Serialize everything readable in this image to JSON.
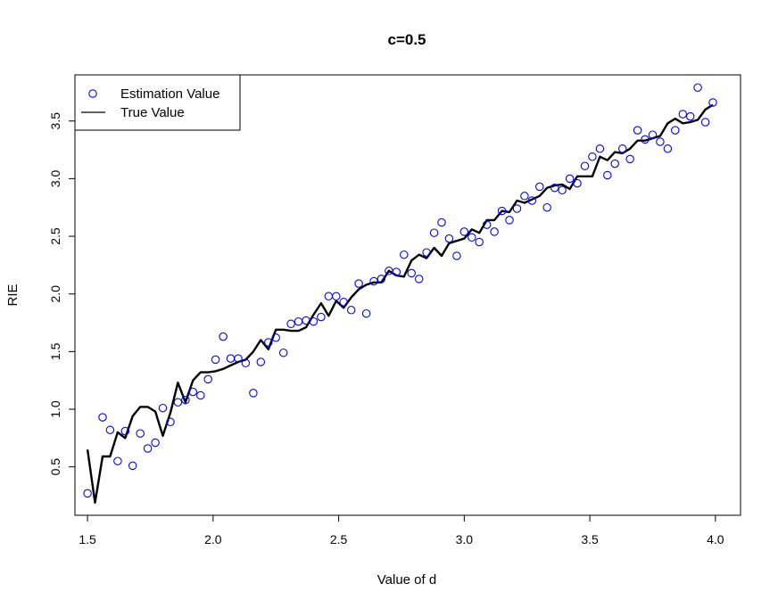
{
  "chart_data": {
    "type": "scatter",
    "title": "c=0.5",
    "xlabel": "Value of d",
    "ylabel": "RIE",
    "xlim": [
      1.45,
      4.1
    ],
    "ylim": [
      0.08,
      3.9
    ],
    "x_ticks": [
      "1.5",
      "2.0",
      "2.5",
      "3.0",
      "3.5",
      "4.0"
    ],
    "y_ticks": [
      "0.5",
      "1.0",
      "1.5",
      "2.0",
      "2.5",
      "3.0",
      "3.5"
    ],
    "legend": {
      "position": "top-left",
      "entries": [
        {
          "label": "Estimation Value",
          "marker": "open-circle",
          "color": "#0000ff"
        },
        {
          "label": "True Value",
          "marker": "line",
          "color": "#000000"
        }
      ]
    },
    "series": [
      {
        "name": "Estimation Value",
        "kind": "points",
        "color": "#0000ff",
        "points": [
          [
            1.5,
            0.27
          ],
          [
            1.56,
            0.93
          ],
          [
            1.59,
            0.82
          ],
          [
            1.62,
            0.55
          ],
          [
            1.65,
            0.81
          ],
          [
            1.68,
            0.51
          ],
          [
            1.71,
            0.79
          ],
          [
            1.74,
            0.66
          ],
          [
            1.77,
            0.71
          ],
          [
            1.8,
            1.01
          ],
          [
            1.83,
            0.89
          ],
          [
            1.86,
            1.06
          ],
          [
            1.89,
            1.08
          ],
          [
            1.92,
            1.15
          ],
          [
            1.95,
            1.12
          ],
          [
            1.98,
            1.26
          ],
          [
            2.01,
            1.43
          ],
          [
            2.04,
            1.63
          ],
          [
            2.07,
            1.44
          ],
          [
            2.1,
            1.44
          ],
          [
            2.13,
            1.4
          ],
          [
            2.16,
            1.14
          ],
          [
            2.19,
            1.41
          ],
          [
            2.22,
            1.58
          ],
          [
            2.25,
            1.62
          ],
          [
            2.28,
            1.49
          ],
          [
            2.31,
            1.74
          ],
          [
            2.34,
            1.76
          ],
          [
            2.37,
            1.77
          ],
          [
            2.4,
            1.76
          ],
          [
            2.43,
            1.8
          ],
          [
            2.46,
            1.98
          ],
          [
            2.49,
            1.98
          ],
          [
            2.52,
            1.93
          ],
          [
            2.55,
            1.86
          ],
          [
            2.58,
            2.09
          ],
          [
            2.61,
            1.83
          ],
          [
            2.64,
            2.11
          ],
          [
            2.67,
            2.13
          ],
          [
            2.7,
            2.2
          ],
          [
            2.73,
            2.19
          ],
          [
            2.76,
            2.34
          ],
          [
            2.79,
            2.18
          ],
          [
            2.82,
            2.13
          ],
          [
            2.85,
            2.36
          ],
          [
            2.88,
            2.53
          ],
          [
            2.91,
            2.62
          ],
          [
            2.94,
            2.48
          ],
          [
            2.97,
            2.33
          ],
          [
            3.0,
            2.54
          ],
          [
            3.03,
            2.49
          ],
          [
            3.06,
            2.45
          ],
          [
            3.09,
            2.6
          ],
          [
            3.12,
            2.54
          ],
          [
            3.15,
            2.72
          ],
          [
            3.18,
            2.64
          ],
          [
            3.21,
            2.74
          ],
          [
            3.24,
            2.85
          ],
          [
            3.27,
            2.81
          ],
          [
            3.3,
            2.93
          ],
          [
            3.33,
            2.75
          ],
          [
            3.36,
            2.92
          ],
          [
            3.39,
            2.9
          ],
          [
            3.42,
            3.0
          ],
          [
            3.45,
            2.96
          ],
          [
            3.48,
            3.11
          ],
          [
            3.51,
            3.19
          ],
          [
            3.54,
            3.26
          ],
          [
            3.57,
            3.03
          ],
          [
            3.6,
            3.13
          ],
          [
            3.63,
            3.26
          ],
          [
            3.66,
            3.17
          ],
          [
            3.69,
            3.42
          ],
          [
            3.72,
            3.34
          ],
          [
            3.75,
            3.38
          ],
          [
            3.78,
            3.32
          ],
          [
            3.81,
            3.26
          ],
          [
            3.84,
            3.42
          ],
          [
            3.87,
            3.56
          ],
          [
            3.9,
            3.54
          ],
          [
            3.93,
            3.79
          ],
          [
            3.96,
            3.49
          ],
          [
            3.99,
            3.66
          ]
        ]
      },
      {
        "name": "True Value",
        "kind": "line",
        "color": "#000000",
        "points": [
          [
            1.5,
            0.65
          ],
          [
            1.53,
            0.19
          ],
          [
            1.56,
            0.59
          ],
          [
            1.59,
            0.59
          ],
          [
            1.62,
            0.8
          ],
          [
            1.65,
            0.75
          ],
          [
            1.68,
            0.94
          ],
          [
            1.71,
            1.02
          ],
          [
            1.74,
            1.02
          ],
          [
            1.77,
            0.98
          ],
          [
            1.8,
            0.77
          ],
          [
            1.83,
            0.97
          ],
          [
            1.86,
            1.23
          ],
          [
            1.89,
            1.06
          ],
          [
            1.92,
            1.25
          ],
          [
            1.95,
            1.32
          ],
          [
            1.98,
            1.32
          ],
          [
            2.01,
            1.33
          ],
          [
            2.04,
            1.35
          ],
          [
            2.07,
            1.38
          ],
          [
            2.1,
            1.41
          ],
          [
            2.13,
            1.43
          ],
          [
            2.16,
            1.5
          ],
          [
            2.19,
            1.6
          ],
          [
            2.22,
            1.52
          ],
          [
            2.25,
            1.69
          ],
          [
            2.28,
            1.69
          ],
          [
            2.31,
            1.68
          ],
          [
            2.34,
            1.68
          ],
          [
            2.37,
            1.71
          ],
          [
            2.4,
            1.82
          ],
          [
            2.43,
            1.92
          ],
          [
            2.46,
            1.81
          ],
          [
            2.49,
            1.94
          ],
          [
            2.52,
            1.88
          ],
          [
            2.55,
            1.97
          ],
          [
            2.58,
            2.04
          ],
          [
            2.61,
            2.08
          ],
          [
            2.64,
            2.1
          ],
          [
            2.67,
            2.1
          ],
          [
            2.7,
            2.2
          ],
          [
            2.73,
            2.16
          ],
          [
            2.76,
            2.15
          ],
          [
            2.79,
            2.29
          ],
          [
            2.82,
            2.34
          ],
          [
            2.85,
            2.31
          ],
          [
            2.88,
            2.4
          ],
          [
            2.91,
            2.33
          ],
          [
            2.94,
            2.44
          ],
          [
            2.97,
            2.46
          ],
          [
            3.0,
            2.48
          ],
          [
            3.03,
            2.56
          ],
          [
            3.06,
            2.53
          ],
          [
            3.09,
            2.64
          ],
          [
            3.12,
            2.64
          ],
          [
            3.15,
            2.72
          ],
          [
            3.18,
            2.71
          ],
          [
            3.21,
            2.81
          ],
          [
            3.24,
            2.79
          ],
          [
            3.27,
            2.82
          ],
          [
            3.3,
            2.85
          ],
          [
            3.33,
            2.92
          ],
          [
            3.36,
            2.94
          ],
          [
            3.39,
            2.95
          ],
          [
            3.42,
            2.91
          ],
          [
            3.45,
            3.02
          ],
          [
            3.48,
            3.02
          ],
          [
            3.51,
            3.02
          ],
          [
            3.54,
            3.19
          ],
          [
            3.57,
            3.16
          ],
          [
            3.6,
            3.23
          ],
          [
            3.63,
            3.22
          ],
          [
            3.66,
            3.26
          ],
          [
            3.69,
            3.33
          ],
          [
            3.72,
            3.33
          ],
          [
            3.75,
            3.35
          ],
          [
            3.78,
            3.37
          ],
          [
            3.81,
            3.48
          ],
          [
            3.84,
            3.52
          ],
          [
            3.87,
            3.48
          ],
          [
            3.9,
            3.49
          ],
          [
            3.93,
            3.51
          ],
          [
            3.96,
            3.6
          ],
          [
            3.99,
            3.64
          ]
        ]
      }
    ]
  }
}
